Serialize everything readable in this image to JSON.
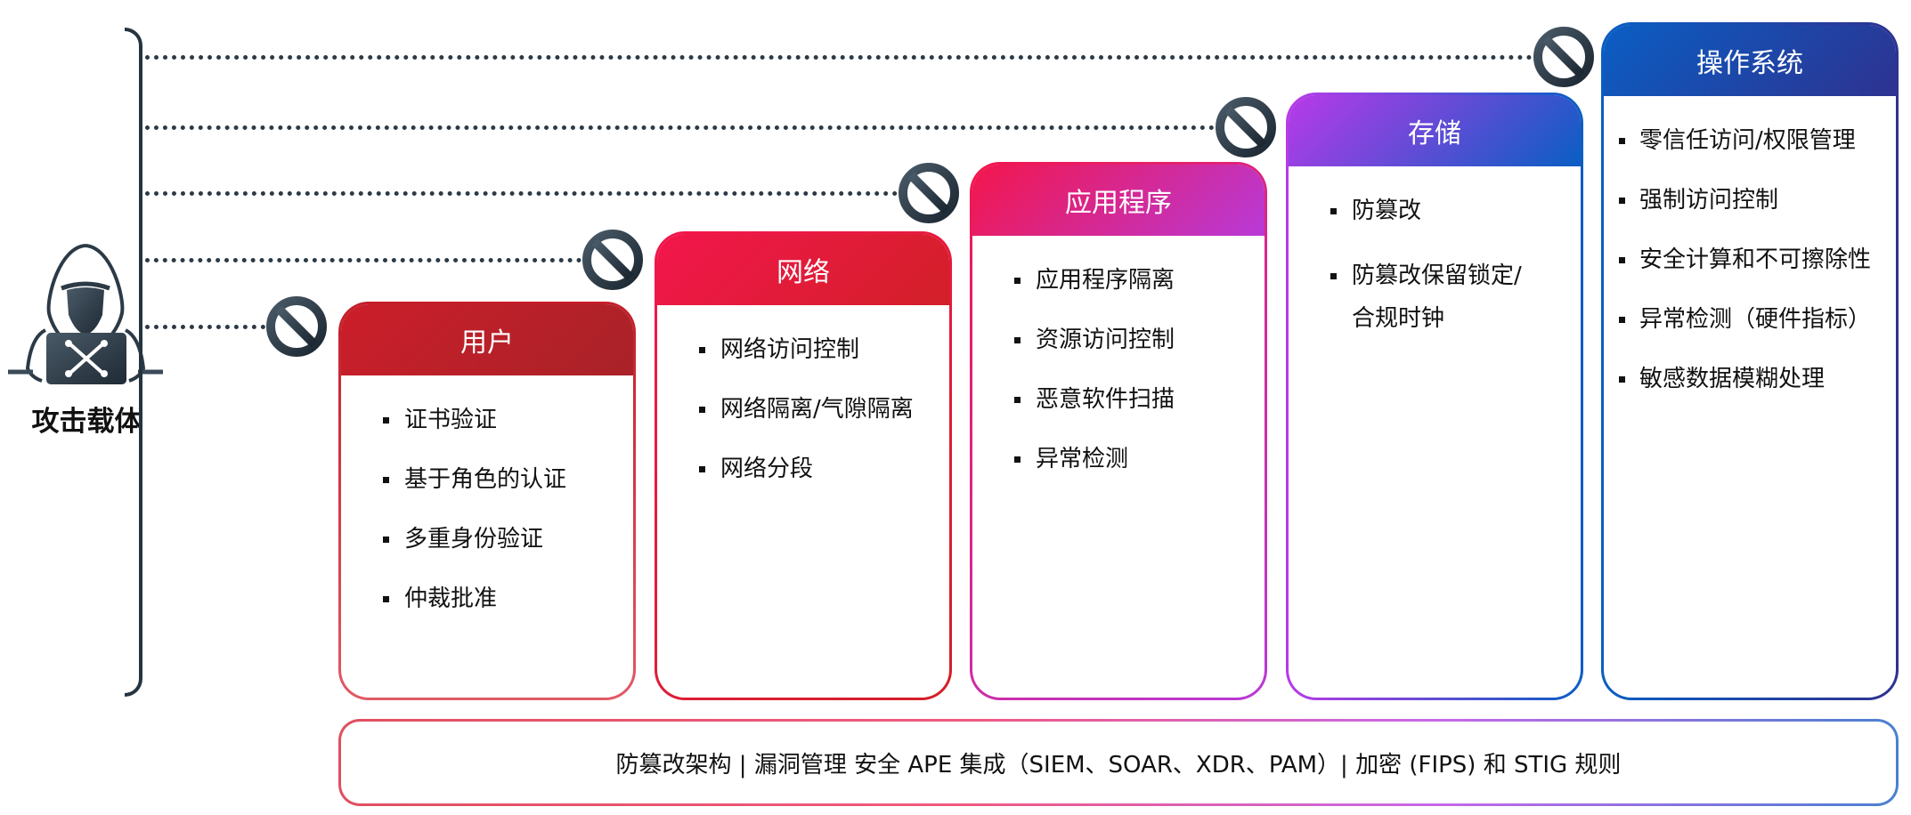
{
  "attacker": {
    "label": "攻击载体"
  },
  "cards": [
    {
      "title": "用户",
      "items": [
        "证书验证",
        "基于角色的认证",
        "多重身份验证",
        "仲裁批准"
      ]
    },
    {
      "title": "网络",
      "items": [
        "网络访问控制",
        "网络隔离/气隙隔离",
        "网络分段"
      ]
    },
    {
      "title": "应用程序",
      "items": [
        "应用程序隔离",
        "资源访问控制",
        "恶意软件扫描",
        "异常检测"
      ]
    },
    {
      "title": "存储",
      "items": [
        "防篡改",
        "防篡改保留锁定/\n合规时钟"
      ]
    },
    {
      "title": "操作系统",
      "items": [
        "零信任访问/权限管理",
        "强制访问控制",
        "安全计算和不可擦除性",
        "异常检测（硬件指标）",
        "敏感数据模糊处理"
      ]
    }
  ],
  "footer": "防篡改架构 | 漏洞管理 安全 APE 集成（SIEM、SOAR、XDR、PAM）| 加密 (FIPS) 和 STIG 规则",
  "colors": {
    "user": [
      "#cc1e2a",
      "#a82228"
    ],
    "network": [
      "#f3164c",
      "#d22028"
    ],
    "application": [
      "#f3164c",
      "#b83ad8"
    ],
    "storage": [
      "#b83ae8",
      "#0a5ec4"
    ],
    "os": [
      "#0a5ec4",
      "#2e3290"
    ],
    "icon": "#243440"
  }
}
